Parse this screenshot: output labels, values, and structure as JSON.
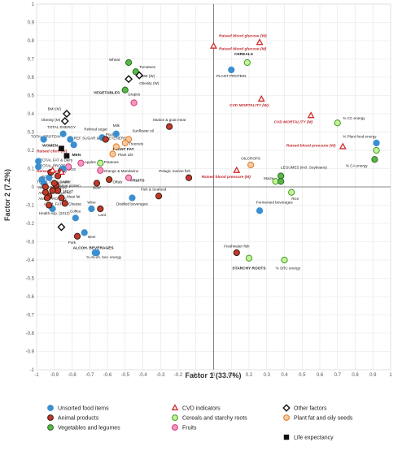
{
  "chart_data": {
    "type": "scatter",
    "xlabel": "Factor 1 (33.7%)",
    "ylabel": "Factor 2 (7.2%)",
    "xlim": [
      -1,
      1
    ],
    "ylim": [
      -1,
      1
    ],
    "xticks": [
      -1,
      -0.9,
      -0.8,
      -0.7,
      -0.6,
      -0.5,
      -0.4,
      -0.3,
      -0.2,
      -0.1,
      0,
      0.1,
      0.2,
      0.3,
      0.4,
      0.5,
      0.6,
      0.7,
      0.8,
      0.9,
      1
    ],
    "yticks": [
      -1,
      -0.9,
      -0.8,
      -0.7,
      -0.6,
      -0.5,
      -0.4,
      -0.3,
      -0.2,
      -0.1,
      0,
      0.1,
      0.2,
      0.3,
      0.4,
      0.5,
      0.6,
      0.7,
      0.8,
      0.9,
      1
    ],
    "tick_labels_x": [
      "-1",
      "-0.9",
      "-0.8",
      "-0.7",
      "-0.6",
      "-0.5",
      "-0.4",
      "-0.3",
      "-0.2",
      "-0.1",
      "0",
      "0.1",
      "0.2",
      "0.3",
      "0.4",
      "0.5",
      "0.6",
      "0.7",
      "0.8",
      "0.9",
      "1"
    ],
    "tick_labels_y": [
      "-1",
      "-0.9",
      "-0.8",
      "-0.7",
      "-0.6",
      "-0.5",
      "-0.4",
      "-0.3",
      "-0.2",
      "-0.1",
      "0",
      "0.1",
      "0.2",
      "0.3",
      "0.4",
      "0.5",
      "0.6",
      "0.7",
      "0.8",
      "0.9",
      "1"
    ],
    "grid": true,
    "legend_position": "bottom",
    "legend": [
      {
        "key": "unsorted",
        "label": "Unsorted food items"
      },
      {
        "key": "cvd",
        "label": "CVD indicators"
      },
      {
        "key": "other",
        "label": "Other factors"
      },
      {
        "key": "animal",
        "label": "Animal products"
      },
      {
        "key": "cereal",
        "label": "Cereals and starchy roots"
      },
      {
        "key": "plantfat",
        "label": "Plant fat and oily seeds"
      },
      {
        "key": "veg",
        "label": "Vegetables and legumes"
      },
      {
        "key": "fruit",
        "label": "Fruits"
      },
      {
        "key": "life",
        "label": "Life expectancy"
      }
    ],
    "categories": {
      "unsorted": {
        "shape": "circle",
        "fill": "#3a8fd0",
        "stroke": "#3a8fd0"
      },
      "animal": {
        "shape": "circle",
        "fill": "#c0392b",
        "stroke": "#3b1a0e"
      },
      "veg": {
        "shape": "circle",
        "fill": "#56b848",
        "stroke": "#2d6b20"
      },
      "cereal": {
        "shape": "circle",
        "fill": "#c8f29a",
        "stroke": "#3a9a20"
      },
      "plantfat": {
        "shape": "circle",
        "fill": "#f7c9a2",
        "stroke": "#e07a22"
      },
      "fruit": {
        "shape": "circle",
        "fill": "#f19ac0",
        "stroke": "#d8327a"
      },
      "cvd": {
        "shape": "triangle",
        "fill": "#ffffff",
        "stroke": "#d22b2b"
      },
      "other": {
        "shape": "diamond",
        "fill": "#ffffff",
        "stroke": "#111111"
      },
      "life": {
        "shape": "square",
        "fill": "#111111",
        "stroke": "#111111"
      }
    },
    "points": [
      {
        "label": "Wheat",
        "x": -0.48,
        "y": 0.68,
        "cat": "veg",
        "lx": -0.53,
        "ly": 0.69,
        "anchor": "end",
        "style": "lbl"
      },
      {
        "label": "Tomatoes",
        "x": -0.44,
        "y": 0.63,
        "cat": "veg",
        "lx": -0.42,
        "ly": 0.65,
        "anchor": "start",
        "style": "lbl"
      },
      {
        "label": "VEGETABLES",
        "x": -0.5,
        "y": 0.53,
        "cat": "veg",
        "lx": -0.53,
        "ly": 0.51,
        "anchor": "end",
        "style": "lbl-bold"
      },
      {
        "label": "Grapes",
        "x": -0.45,
        "y": 0.46,
        "cat": "fruit",
        "lx": -0.45,
        "ly": 0.5,
        "anchor": "middle",
        "style": "lbl"
      },
      {
        "label": "CEREALS",
        "x": 0.19,
        "y": 0.68,
        "cat": "cereal",
        "lx": 0.17,
        "ly": 0.72,
        "anchor": "middle",
        "style": "lbl-bold"
      },
      {
        "label": "PLANT PROTEIN",
        "x": 0.1,
        "y": 0.64,
        "cat": "unsorted",
        "lx": 0.1,
        "ly": 0.6,
        "anchor": "middle",
        "style": "lbl"
      },
      {
        "label": "% CC energy",
        "x": 0.7,
        "y": 0.35,
        "cat": "cereal",
        "lx": 0.73,
        "ly": 0.37,
        "anchor": "start",
        "style": "lbl"
      },
      {
        "label": "% Plant food energy",
        "x": 0.92,
        "y": 0.24,
        "cat": "unsorted",
        "lx": 0.92,
        "ly": 0.27,
        "anchor": "end",
        "style": "lbl"
      },
      {
        "label": "% CC energy & % SRC energy",
        "x": 0.92,
        "y": 0.2,
        "cat": "cereal",
        "lx": 0.96,
        "ly": 0.2,
        "anchor": "end",
        "style": "lbl",
        "hideLabel": true
      },
      {
        "label": "% CA energy",
        "x": 0.91,
        "y": 0.15,
        "cat": "veg",
        "lx": 0.87,
        "ly": 0.11,
        "anchor": "end",
        "style": "lbl"
      },
      {
        "label": "Mutton & goat meat",
        "x": -0.25,
        "y": 0.33,
        "cat": "animal",
        "lx": -0.25,
        "ly": 0.36,
        "anchor": "middle",
        "style": "lbl"
      },
      {
        "label": "OILCROPS",
        "x": 0.21,
        "y": 0.12,
        "cat": "plantfat",
        "lx": 0.21,
        "ly": 0.15,
        "anchor": "middle",
        "style": "lbl"
      },
      {
        "label": "LEGUMES (incl. Soybeans)",
        "x": 0.38,
        "y": 0.06,
        "cat": "veg",
        "lx": 0.38,
        "ly": 0.1,
        "anchor": "start",
        "style": "lbl"
      },
      {
        "label": "Maize",
        "x": 0.35,
        "y": 0.03,
        "cat": "cereal",
        "lx": 0.34,
        "ly": 0.04,
        "anchor": "end",
        "style": "lbl"
      },
      {
        "label": "LEGUMES (incl. Soybeans)",
        "x": 0.38,
        "y": 0.03,
        "cat": "veg",
        "lx": 0.4,
        "ly": 0.04,
        "anchor": "start",
        "style": "lbl",
        "hideLabel": true
      },
      {
        "label": "Rice",
        "x": 0.44,
        "y": -0.03,
        "cat": "cereal",
        "lx": 0.44,
        "ly": -0.07,
        "anchor": "start",
        "style": "lbl"
      },
      {
        "label": "Fermented beverages",
        "x": 0.26,
        "y": -0.13,
        "cat": "unsorted",
        "lx": 0.24,
        "ly": -0.09,
        "anchor": "start",
        "style": "lbl"
      },
      {
        "label": "Freshwater fish",
        "x": 0.13,
        "y": -0.36,
        "cat": "animal",
        "lx": 0.13,
        "ly": -0.33,
        "anchor": "middle",
        "style": "lbl"
      },
      {
        "label": "STARCHY ROOTS",
        "x": 0.2,
        "y": -0.39,
        "cat": "cereal",
        "lx": 0.2,
        "ly": -0.45,
        "anchor": "middle",
        "style": "lbl-bold"
      },
      {
        "label": "% SRC energy",
        "x": 0.4,
        "y": -0.4,
        "cat": "cereal",
        "lx": 0.42,
        "ly": -0.45,
        "anchor": "middle",
        "style": "lbl"
      },
      {
        "label": "Milk",
        "x": -0.55,
        "y": 0.29,
        "cat": "unsorted",
        "lx": -0.55,
        "ly": 0.33,
        "anchor": "middle",
        "style": "lbl"
      },
      {
        "label": "Sunflower oil",
        "x": -0.48,
        "y": 0.26,
        "cat": "plantfat",
        "lx": -0.46,
        "ly": 0.3,
        "anchor": "start",
        "style": "lbl"
      },
      {
        "label": "Refined sugar",
        "x": -0.63,
        "y": 0.27,
        "cat": "unsorted",
        "lx": -0.6,
        "ly": 0.31,
        "anchor": "end",
        "style": "lbl"
      },
      {
        "label": "Poultry",
        "x": -0.61,
        "y": 0.26,
        "cat": "animal",
        "lx": -0.61,
        "ly": 0.28,
        "anchor": "start",
        "style": "lbl"
      },
      {
        "label": "Treenuts",
        "x": -0.5,
        "y": 0.24,
        "cat": "plantfat",
        "lx": -0.48,
        "ly": 0.23,
        "anchor": "start",
        "style": "lbl"
      },
      {
        "label": "PLANT FAT",
        "x": -0.55,
        "y": 0.22,
        "cat": "plantfat",
        "lx": -0.57,
        "ly": 0.2,
        "anchor": "start",
        "style": "lbl-bold"
      },
      {
        "label": "Plant oils",
        "x": -0.57,
        "y": 0.18,
        "cat": "plantfat",
        "lx": -0.54,
        "ly": 0.17,
        "anchor": "start",
        "style": "lbl"
      },
      {
        "label": "Potatoes",
        "x": -0.64,
        "y": 0.13,
        "cat": "cereal",
        "lx": -0.62,
        "ly": 0.13,
        "anchor": "start",
        "style": "lbl"
      },
      {
        "label": "Apples",
        "x": -0.75,
        "y": 0.13,
        "cat": "fruit",
        "lx": -0.73,
        "ly": 0.13,
        "anchor": "start",
        "style": "lbl"
      },
      {
        "label": "Orange & Mandarins",
        "x": -0.64,
        "y": 0.09,
        "cat": "fruit",
        "lx": -0.62,
        "ly": 0.08,
        "anchor": "start",
        "style": "lbl"
      },
      {
        "label": "Offals",
        "x": -0.59,
        "y": 0.04,
        "cat": "animal",
        "lx": -0.57,
        "ly": 0.02,
        "anchor": "start",
        "style": "lbl"
      },
      {
        "label": "FRUITS",
        "x": -0.48,
        "y": 0.05,
        "cat": "fruit",
        "lx": -0.47,
        "ly": 0.03,
        "anchor": "start",
        "style": "lbl-bold"
      },
      {
        "label": "Pelagic marine fish",
        "x": -0.14,
        "y": 0.05,
        "cat": "animal",
        "lx": -0.22,
        "ly": 0.08,
        "anchor": "middle",
        "style": "lbl"
      },
      {
        "label": "Beef",
        "x": -0.66,
        "y": 0.02,
        "cat": "animal",
        "lx": -0.66,
        "ly": -0.01,
        "anchor": "middle",
        "style": "lbl"
      },
      {
        "label": "Fish & Seafood",
        "x": -0.31,
        "y": -0.05,
        "cat": "animal",
        "lx": -0.34,
        "ly": -0.02,
        "anchor": "middle",
        "style": "lbl"
      },
      {
        "label": "Distilled beverages",
        "x": -0.46,
        "y": -0.06,
        "cat": "unsorted",
        "lx": -0.46,
        "ly": -0.1,
        "anchor": "middle",
        "style": "lbl"
      },
      {
        "label": "Wine",
        "x": -0.69,
        "y": -0.12,
        "cat": "unsorted",
        "lx": -0.69,
        "ly": -0.09,
        "anchor": "middle",
        "style": "lbl"
      },
      {
        "label": "Lard",
        "x": -0.64,
        "y": -0.12,
        "cat": "animal",
        "lx": -0.63,
        "ly": -0.16,
        "anchor": "middle",
        "style": "lbl"
      },
      {
        "label": "Coffee",
        "x": -0.78,
        "y": -0.17,
        "cat": "unsorted",
        "lx": -0.75,
        "ly": -0.14,
        "anchor": "end",
        "style": "lbl"
      },
      {
        "label": "Beer",
        "x": -0.73,
        "y": -0.25,
        "cat": "unsorted",
        "lx": -0.71,
        "ly": -0.28,
        "anchor": "start",
        "style": "lbl"
      },
      {
        "label": "Pork",
        "x": -0.77,
        "y": -0.27,
        "cat": "animal",
        "lx": -0.8,
        "ly": -0.31,
        "anchor": "middle",
        "style": "lbl"
      },
      {
        "label": "ALCOH. BEVERAGES",
        "x": -0.67,
        "y": -0.36,
        "cat": "unsorted",
        "lx": -0.68,
        "ly": -0.34,
        "anchor": "middle",
        "style": "lbl-bold"
      },
      {
        "label": "% Alcoh. bev. energy",
        "x": -0.66,
        "y": -0.36,
        "cat": "unsorted",
        "lx": -0.62,
        "ly": -0.39,
        "anchor": "middle",
        "style": "lbl"
      },
      {
        "label": "Health exp. (2012)",
        "x": -0.91,
        "y": -0.12,
        "cat": "unsorted",
        "lx": -0.9,
        "ly": -0.15,
        "anchor": "middle",
        "style": "lbl"
      },
      {
        "label": "TOTAL ENERGY",
        "x": -0.85,
        "y": 0.29,
        "cat": "unsorted",
        "lx": -0.86,
        "ly": 0.32,
        "anchor": "middle",
        "style": "lbl"
      },
      {
        "label": "TOTAL PROTEIN",
        "x": -0.96,
        "y": 0.26,
        "cat": "unsorted",
        "lx": -0.95,
        "ly": 0.27,
        "anchor": "middle",
        "style": "lbl"
      },
      {
        "label": "REF SUGAR & SWEETENERS",
        "x": -0.81,
        "y": 0.26,
        "cat": "unsorted",
        "lx": -0.79,
        "ly": 0.26,
        "anchor": "start",
        "style": "lbl"
      },
      {
        "label": "SWEETENERS",
        "x": -0.79,
        "y": 0.23,
        "cat": "unsorted",
        "lx": -0.79,
        "ly": 0.23,
        "anchor": "start",
        "style": "lbl",
        "hideLabel": true
      },
      {
        "label": "WOMEN",
        "x": -0.86,
        "y": 0.21,
        "cat": "life",
        "lx": -0.88,
        "ly": 0.22,
        "anchor": "end",
        "style": "lbl-bold"
      },
      {
        "label": "MEN",
        "x": -0.83,
        "y": 0.17,
        "cat": "life",
        "lx": -0.8,
        "ly": 0.17,
        "anchor": "start",
        "style": "lbl-bold"
      },
      {
        "label": "DAIRY",
        "x": -0.88,
        "y": 0.06,
        "cat": "animal",
        "lx": -0.87,
        "ly": 0.02,
        "anchor": "start",
        "style": "lbl"
      },
      {
        "label": "EGGS",
        "x": -0.86,
        "y": 0.09,
        "cat": "animal",
        "lx": -0.84,
        "ly": 0.09,
        "anchor": "start",
        "style": "lbl"
      },
      {
        "label": "Meat protein",
        "x": -0.89,
        "y": 0.01,
        "cat": "animal",
        "lx": -0.87,
        "ly": 0.0,
        "anchor": "start",
        "style": "lbl"
      },
      {
        "label": "MEAT",
        "x": -0.88,
        "y": -0.02,
        "cat": "animal",
        "lx": -0.85,
        "ly": -0.03,
        "anchor": "start",
        "style": "lbl"
      },
      {
        "label": "Meat fat",
        "x": -0.86,
        "y": -0.06,
        "cat": "animal",
        "lx": -0.83,
        "ly": -0.06,
        "anchor": "start",
        "style": "lbl"
      },
      {
        "label": "Cheese",
        "x": -0.84,
        "y": -0.09,
        "cat": "animal",
        "lx": -0.82,
        "ly": -0.1,
        "anchor": "start",
        "style": "lbl"
      },
      {
        "label": "TOTAL FAT & Dairy",
        "x": -0.99,
        "y": 0.14,
        "cat": "unsorted",
        "lx": -0.98,
        "ly": 0.14,
        "anchor": "start",
        "style": "lbl"
      },
      {
        "label": "TOTAL PROTEIN",
        "x": -0.99,
        "y": 0.11,
        "cat": "unsorted",
        "lx": -0.98,
        "ly": 0.11,
        "anchor": "start",
        "style": "lbl"
      },
      {
        "label": "TOTAL FAT",
        "x": -0.93,
        "y": 0.05,
        "cat": "unsorted",
        "lx": -0.97,
        "ly": 0.05,
        "anchor": "start",
        "style": "lbl"
      },
      {
        "label": "TOTAL FAT & ANIM.",
        "x": -0.96,
        "y": 0.02,
        "cat": "unsorted",
        "lx": -1.0,
        "ly": 0.02,
        "anchor": "start",
        "style": "lbl"
      },
      {
        "label": "ANIM. PROTEIN",
        "x": -0.91,
        "y": -0.02,
        "cat": "animal",
        "lx": -0.99,
        "ly": -0.01,
        "anchor": "start",
        "style": "lbl"
      },
      {
        "label": "ANIM. PRODUCTS",
        "x": -0.93,
        "y": -0.05,
        "cat": "animal",
        "lx": -0.99,
        "ly": -0.04,
        "anchor": "start",
        "style": "lbl"
      },
      {
        "label": "ANIM. PROTEIN",
        "x": -0.94,
        "y": -0.06,
        "cat": "animal",
        "lx": -0.99,
        "ly": -0.07,
        "anchor": "start",
        "style": "lbl"
      },
      {
        "label": "ANIM. FAT",
        "x": -0.93,
        "y": -0.1,
        "cat": "animal",
        "lx": -0.96,
        "ly": -0.1,
        "anchor": "start",
        "style": "lbl"
      },
      {
        "label": "",
        "x": -0.95,
        "y": -0.03,
        "cat": "animal",
        "hideLabel": true
      },
      {
        "label": "",
        "x": -0.9,
        "y": 0.02,
        "cat": "animal",
        "hideLabel": true
      },
      {
        "label": "",
        "x": -0.92,
        "y": 0.08,
        "cat": "animal",
        "hideLabel": true
      },
      {
        "label": "",
        "x": -0.97,
        "y": 0.04,
        "cat": "unsorted",
        "hideLabel": true
      },
      {
        "label": "",
        "x": -0.95,
        "y": 0.0,
        "cat": "animal",
        "hideLabel": true
      },
      {
        "label": "",
        "x": -0.82,
        "y": 0.11,
        "cat": "fruit",
        "hideLabel": true
      },
      {
        "label": "",
        "x": -0.85,
        "y": 0.1,
        "cat": "unsorted",
        "hideLabel": true
      },
      {
        "label": "Raised blood glucose (W)",
        "x": 0.0,
        "y": 0.77,
        "cat": "cvd",
        "lx": 0.03,
        "ly": 0.82,
        "anchor": "start",
        "style": "lbl-red"
      },
      {
        "label": "Raised blood glucose (M)",
        "x": 0.26,
        "y": 0.79,
        "cat": "cvd",
        "lx": 0.03,
        "ly": 0.75,
        "anchor": "start",
        "style": "lbl-red"
      },
      {
        "label": "CVD MORTALITY (W)",
        "x": 0.27,
        "y": 0.48,
        "cat": "cvd",
        "lx": 0.2,
        "ly": 0.44,
        "anchor": "middle",
        "style": "lbl-red"
      },
      {
        "label": "CVD MORTALITY (M)",
        "x": 0.55,
        "y": 0.39,
        "cat": "cvd",
        "lx": 0.45,
        "ly": 0.35,
        "anchor": "middle",
        "style": "lbl-red"
      },
      {
        "label": "Raised blood pressure (W)",
        "x": 0.73,
        "y": 0.22,
        "cat": "cvd",
        "lx": 0.55,
        "ly": 0.22,
        "anchor": "middle",
        "style": "lbl-red"
      },
      {
        "label": "Raised blood pressure (M)",
        "x": 0.13,
        "y": 0.09,
        "cat": "cvd",
        "lx": 0.07,
        "ly": 0.05,
        "anchor": "middle",
        "style": "lbl-red"
      },
      {
        "label": "Raised chol. (W)",
        "x": -0.91,
        "y": 0.09,
        "cat": "cvd",
        "lx": -1.0,
        "ly": 0.19,
        "anchor": "start",
        "style": "lbl-red"
      },
      {
        "label": "Raised chol. (M)",
        "x": -0.86,
        "y": 0.08,
        "cat": "cvd",
        "lx": -1.0,
        "ly": 0.08,
        "anchor": "start",
        "style": "lbl-red"
      },
      {
        "label": "BMI (W)",
        "x": -0.42,
        "y": 0.61,
        "cat": "other",
        "lx": -0.41,
        "ly": 0.6,
        "anchor": "start",
        "style": "lbl"
      },
      {
        "label": "Obesity (W)",
        "x": -0.48,
        "y": 0.59,
        "cat": "other",
        "lx": -0.42,
        "ly": 0.56,
        "anchor": "start",
        "style": "lbl"
      },
      {
        "label": "BMI (M)",
        "x": -0.83,
        "y": 0.4,
        "cat": "other",
        "lx": -0.9,
        "ly": 0.42,
        "anchor": "middle",
        "style": "lbl"
      },
      {
        "label": "Obesity (M)",
        "x": -0.84,
        "y": 0.36,
        "cat": "other",
        "lx": -0.92,
        "ly": 0.36,
        "anchor": "middle",
        "style": "lbl"
      },
      {
        "label": "",
        "x": -0.86,
        "y": -0.22,
        "cat": "other",
        "hideLabel": true
      }
    ]
  }
}
